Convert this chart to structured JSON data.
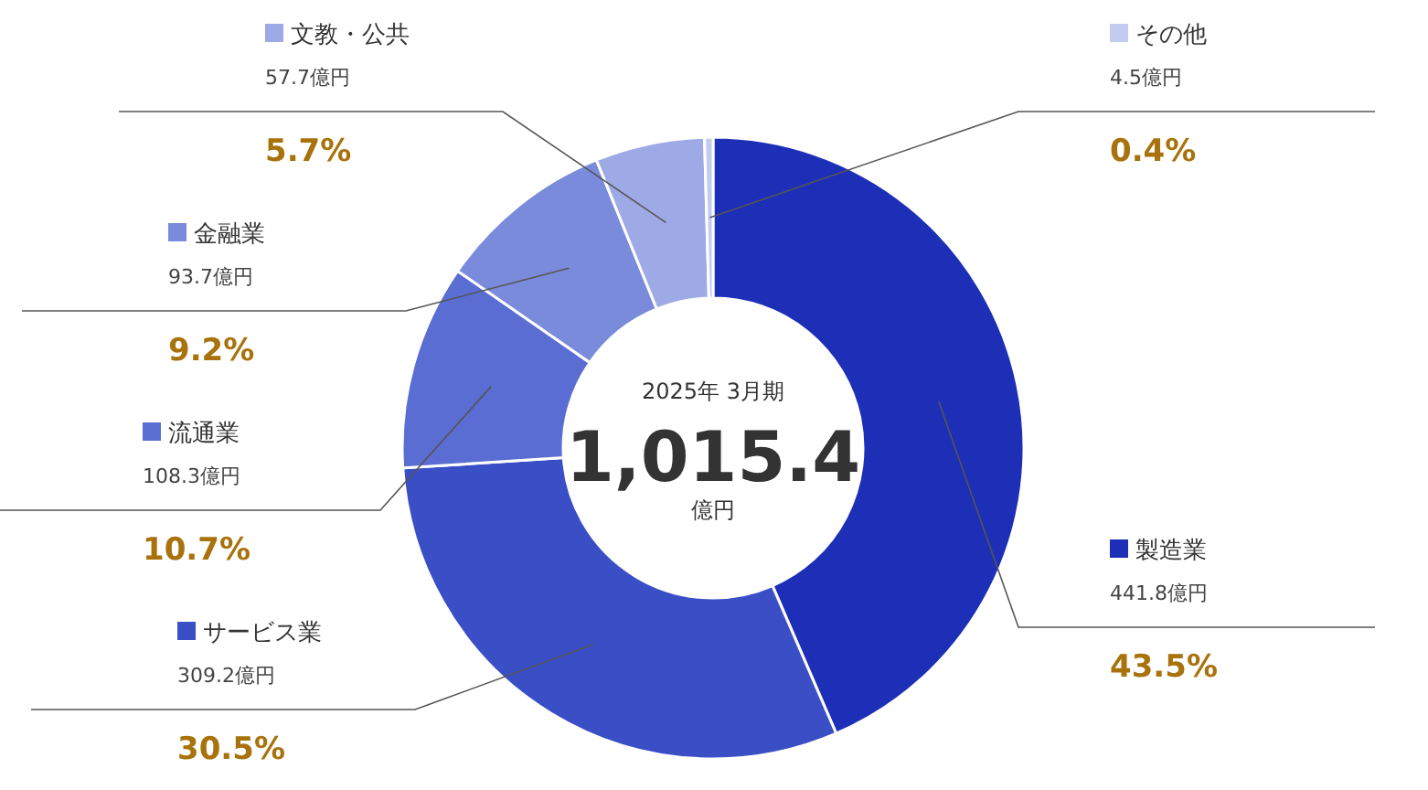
{
  "chart_data": {
    "type": "donut",
    "title": "1,015.4",
    "subtitle": "2025年 3月期",
    "categories": [
      "製造業",
      "サービス業",
      "流通業",
      "金融業",
      "文教・公共",
      "その他"
    ],
    "values": [
      441.8,
      309.2,
      108.3,
      93.7,
      57.7,
      4.5
    ],
    "value_labels": [
      "441.8億円",
      "309.2億円",
      "108.3億円",
      "93.7億円",
      "57.7億円",
      "4.5億円"
    ],
    "colors": [
      "#1d2fb7",
      "#3a4fc6",
      "#5a6dd2",
      "#7b8bdb",
      "#9eaae6",
      "#c4cbf0"
    ],
    "annotations": [
      {
        "text": "43.5%",
        "x": "製造業"
      },
      {
        "text": "30.5%",
        "x": "サービス業"
      },
      {
        "text": "10.7%",
        "x": "流通業"
      },
      {
        "text": "9.2%",
        "x": "金融業"
      },
      {
        "text": "5.7%",
        "x": "文教・公共"
      },
      {
        "text": "0.4%",
        "x": "その他"
      },
      "億円"
    ],
    "legend": "left"
  }
}
